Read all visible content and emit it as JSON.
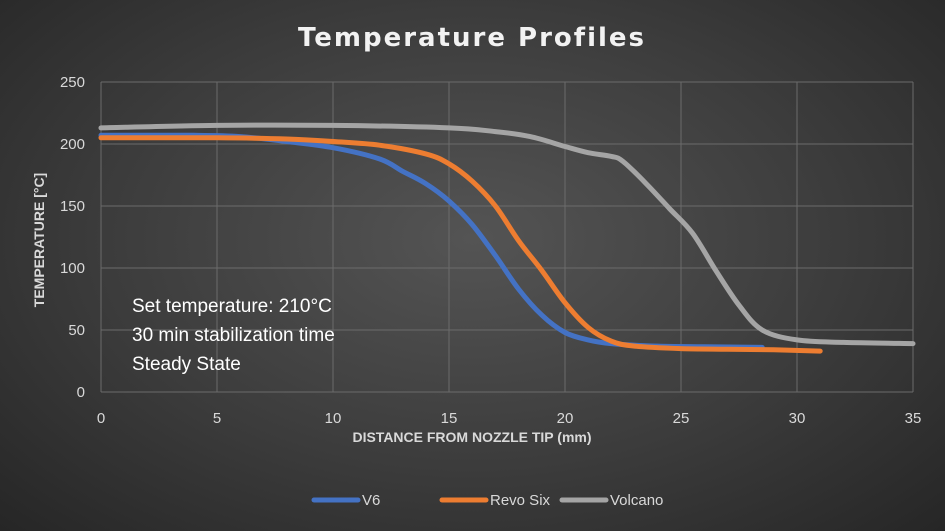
{
  "chart_data": {
    "type": "line",
    "title": "Temperature Profiles",
    "xlabel": "DISTANCE FROM NOZZLE TIP (mm)",
    "ylabel": "TEMPERATURE [°C]",
    "xlim": [
      0,
      35
    ],
    "ylim": [
      0,
      250
    ],
    "x_ticks": [
      0,
      5,
      10,
      15,
      20,
      25,
      30,
      35
    ],
    "y_ticks": [
      0,
      50,
      100,
      150,
      200,
      250
    ],
    "grid": true,
    "legend_position": "bottom",
    "annotations": [
      "Set temperature: 210°C",
      "30 min stabilization time",
      "Steady State"
    ],
    "series": [
      {
        "name": "V6",
        "color": "#4472C4",
        "x": [
          0,
          4,
          6,
          8,
          10,
          12,
          13,
          14,
          15,
          16,
          17,
          18,
          19,
          20,
          21,
          22,
          24,
          26,
          28.5
        ],
        "y": [
          207,
          207,
          206,
          202,
          197,
          188,
          178,
          168,
          154,
          135,
          110,
          83,
          62,
          48,
          42,
          39,
          37,
          36.5,
          36
        ]
      },
      {
        "name": "Revo Six",
        "color": "#ED7D31",
        "x": [
          0,
          5,
          8,
          10,
          12,
          14,
          15,
          16,
          17,
          18,
          19,
          20,
          21,
          22,
          23,
          25,
          27,
          29,
          31
        ],
        "y": [
          205,
          205,
          204,
          202,
          199,
          192,
          184,
          170,
          150,
          122,
          98,
          72,
          52,
          41,
          37,
          35,
          34.5,
          34,
          33
        ]
      },
      {
        "name": "Volcano",
        "color": "#A5A5A5",
        "x": [
          0,
          5,
          10,
          15,
          17,
          18.5,
          20,
          21,
          22,
          22.5,
          23.5,
          24.5,
          25.5,
          26.5,
          27.5,
          28.5,
          30,
          32,
          35
        ],
        "y": [
          213,
          215,
          215,
          213,
          210,
          206,
          198,
          193,
          190,
          186,
          168,
          148,
          128,
          98,
          70,
          50,
          42,
          40,
          39
        ]
      }
    ]
  }
}
